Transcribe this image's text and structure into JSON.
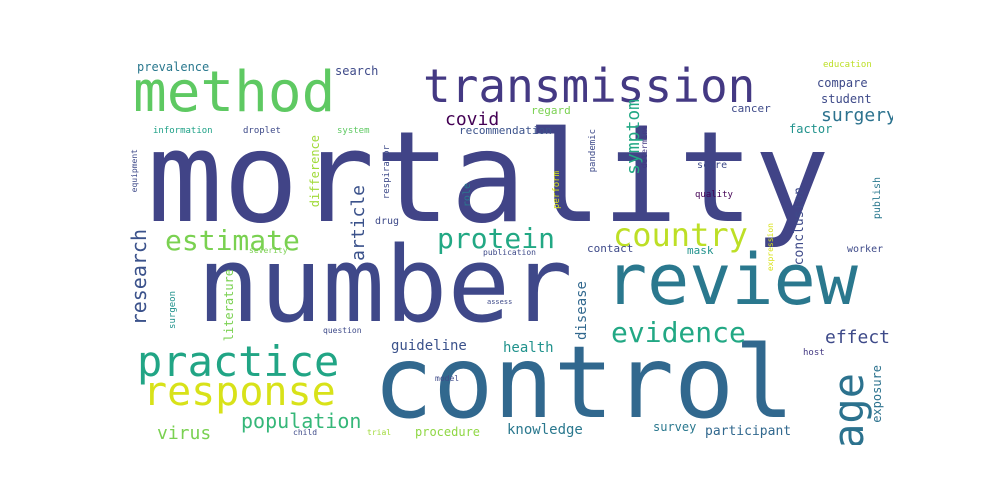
{
  "wordcloud": {
    "words": [
      {
        "text": "mortality",
        "color": "#414487"
      },
      {
        "text": "number",
        "color": "#3f4889"
      },
      {
        "text": "control",
        "color": "#31688e"
      },
      {
        "text": "review",
        "color": "#2a788e"
      },
      {
        "text": "method",
        "color": "#5ec962"
      },
      {
        "text": "transmission",
        "color": "#443983"
      },
      {
        "text": "practice",
        "color": "#21a585"
      },
      {
        "text": "response",
        "color": "#d8e219"
      },
      {
        "text": "age",
        "color": "#2c728e"
      },
      {
        "text": "estimate",
        "color": "#7ad151"
      },
      {
        "text": "protein",
        "color": "#22a884"
      },
      {
        "text": "country",
        "color": "#bddf26"
      },
      {
        "text": "evidence",
        "color": "#22a884"
      },
      {
        "text": "research",
        "color": "#3b528b"
      },
      {
        "text": "population",
        "color": "#35b779"
      },
      {
        "text": "surgery",
        "color": "#2c728e"
      },
      {
        "text": "effect",
        "color": "#3e4a89"
      },
      {
        "text": "virus",
        "color": "#7ad151"
      },
      {
        "text": "covid",
        "color": "#440154"
      },
      {
        "text": "article",
        "color": "#3b528b"
      },
      {
        "text": "symptom",
        "color": "#22a884"
      },
      {
        "text": "knowledge",
        "color": "#2a788e"
      },
      {
        "text": "guideline",
        "color": "#3b528b"
      },
      {
        "text": "health",
        "color": "#20928c"
      },
      {
        "text": "disease",
        "color": "#31688e"
      },
      {
        "text": "conclusion",
        "color": "#3e4a89"
      },
      {
        "text": "exposure",
        "color": "#2c728e"
      },
      {
        "text": "participant",
        "color": "#31688e"
      },
      {
        "text": "procedure",
        "color": "#8fd744"
      },
      {
        "text": "survey",
        "color": "#2a788e"
      },
      {
        "text": "literature",
        "color": "#7ad151"
      },
      {
        "text": "difference",
        "color": "#a0da39"
      },
      {
        "text": "compare",
        "color": "#3e4a89"
      },
      {
        "text": "student",
        "color": "#3e4a89"
      },
      {
        "text": "factor",
        "color": "#20928c"
      },
      {
        "text": "prevalence",
        "color": "#2a788e"
      },
      {
        "text": "search",
        "color": "#3e4a89"
      },
      {
        "text": "recommendation",
        "color": "#3b528b"
      },
      {
        "text": "regard",
        "color": "#7ad151"
      },
      {
        "text": "cancer",
        "color": "#3e4a89"
      },
      {
        "text": "education",
        "color": "#bddf26"
      },
      {
        "text": "information",
        "color": "#1fa187"
      },
      {
        "text": "droplet",
        "color": "#3e4a89"
      },
      {
        "text": "system",
        "color": "#5ec962"
      },
      {
        "text": "respirator",
        "color": "#3e4a89"
      },
      {
        "text": "pandemic",
        "color": "#3e4a89"
      },
      {
        "text": "perform",
        "color": "#d8e219"
      },
      {
        "text": "determine",
        "color": "#443983"
      },
      {
        "text": "role",
        "color": "#2a788e"
      },
      {
        "text": "score",
        "color": "#3e4a89"
      },
      {
        "text": "quality",
        "color": "#440154"
      },
      {
        "text": "publish",
        "color": "#2a788e"
      },
      {
        "text": "drug",
        "color": "#3e4a89"
      },
      {
        "text": "equipment",
        "color": "#3e4a89"
      },
      {
        "text": "severity",
        "color": "#7ad151"
      },
      {
        "text": "publication",
        "color": "#3e4a89"
      },
      {
        "text": "contact",
        "color": "#3e4a89"
      },
      {
        "text": "mask",
        "color": "#20928c"
      },
      {
        "text": "expression",
        "color": "#d8e219"
      },
      {
        "text": "worker",
        "color": "#3e4a89"
      },
      {
        "text": "surgeon",
        "color": "#20928c"
      },
      {
        "text": "assess",
        "color": "#3e4a89"
      },
      {
        "text": "question",
        "color": "#3e4a89"
      },
      {
        "text": "host",
        "color": "#443983"
      },
      {
        "text": "model",
        "color": "#3e4a89"
      },
      {
        "text": "child",
        "color": "#3e4a89"
      },
      {
        "text": "trial",
        "color": "#a0da39"
      }
    ]
  }
}
